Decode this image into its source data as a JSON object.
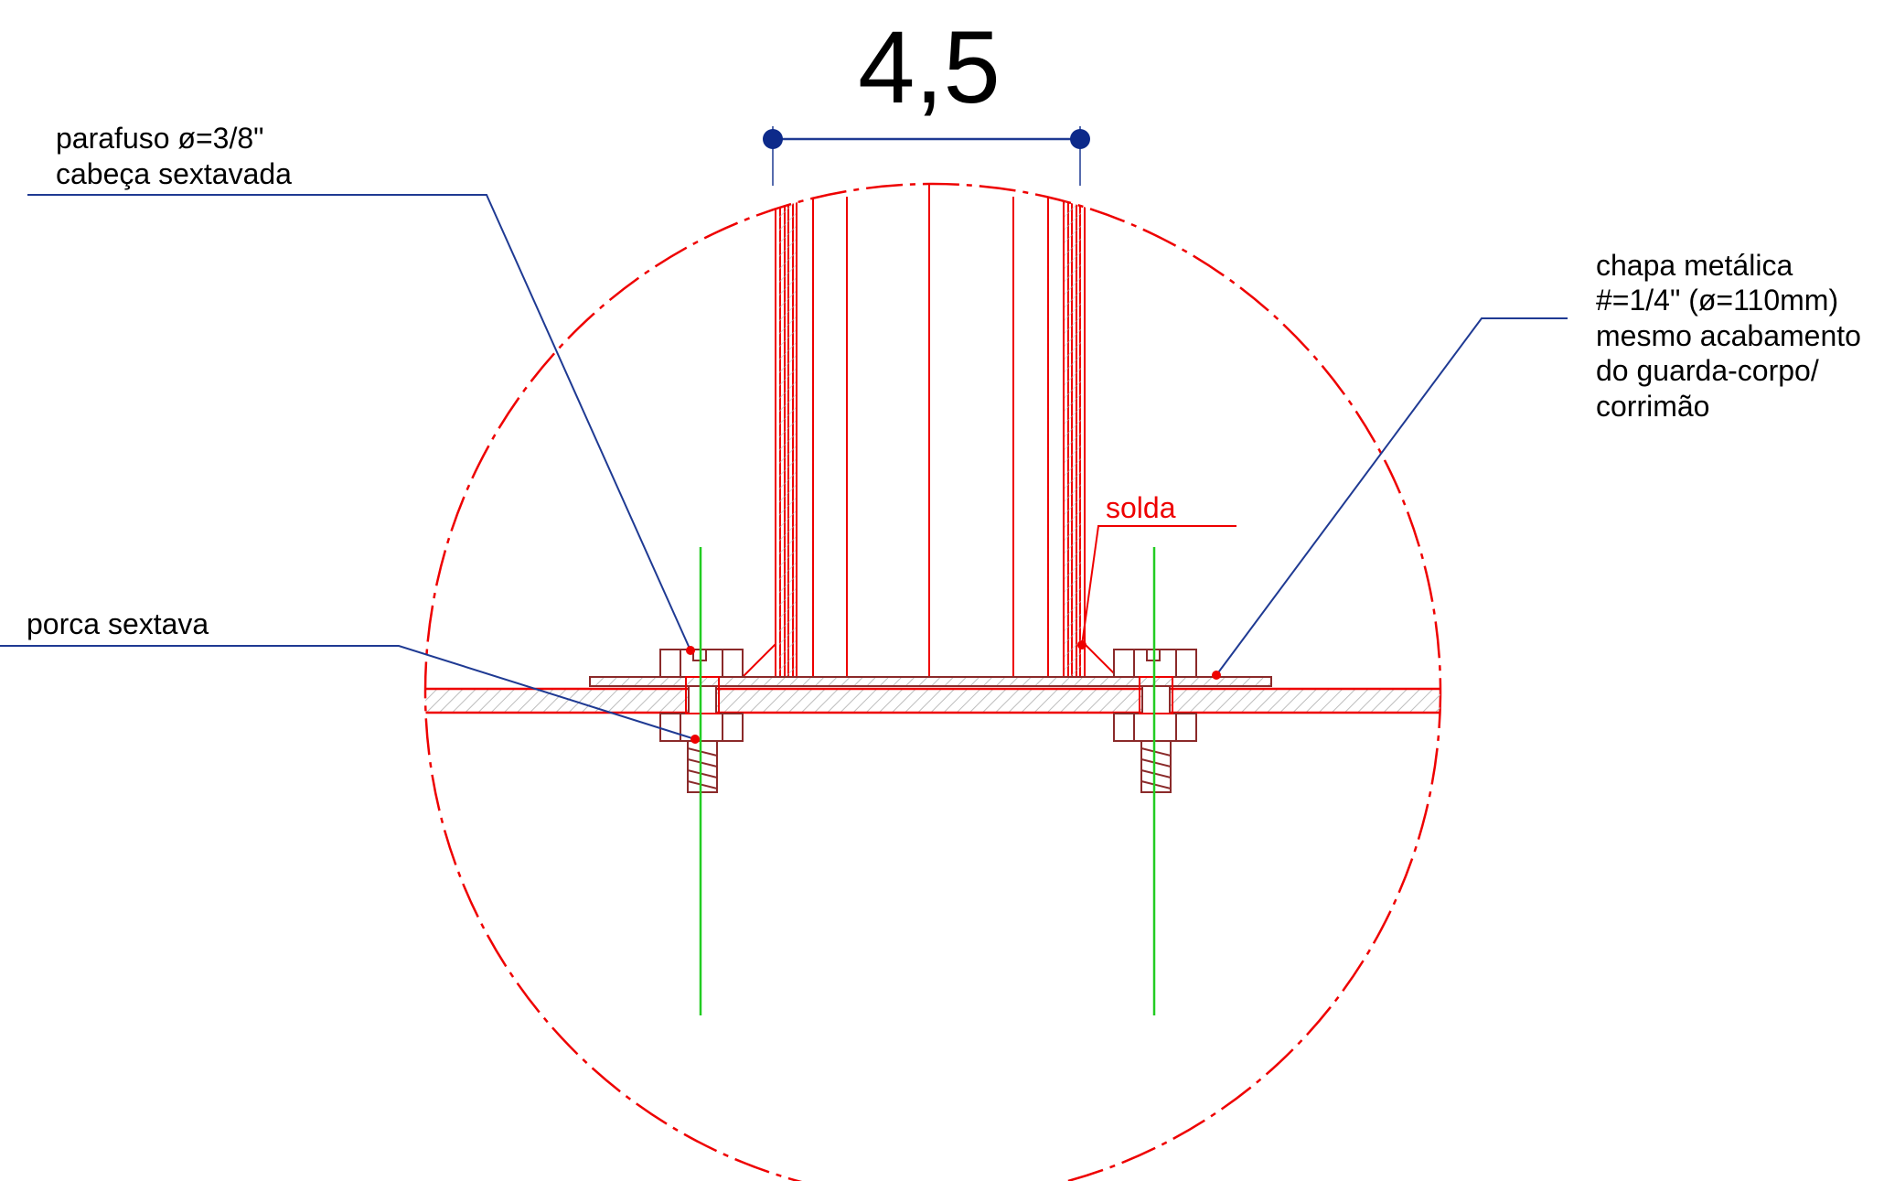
{
  "dimension": {
    "value": "4,5"
  },
  "labels": {
    "bolt_line1": "parafuso ø=3/8\"",
    "bolt_line2": "cabeça sextavada",
    "nut": "porca sextava",
    "weld": "solda",
    "plate_line1": "chapa metálica",
    "plate_line2": "#=1/4\" (ø=110mm)",
    "plate_line3": "mesmo acabamento",
    "plate_line4": "do guarda-corpo/",
    "plate_line5": "corrimão"
  },
  "colors": {
    "geometry": "#ee0000",
    "leader": "#1f3a93",
    "dimension_dot": "#0d2a8a",
    "centerline": "#22cc22",
    "hatch": "#c8c8c8",
    "bolt": "#8b2a2a"
  }
}
